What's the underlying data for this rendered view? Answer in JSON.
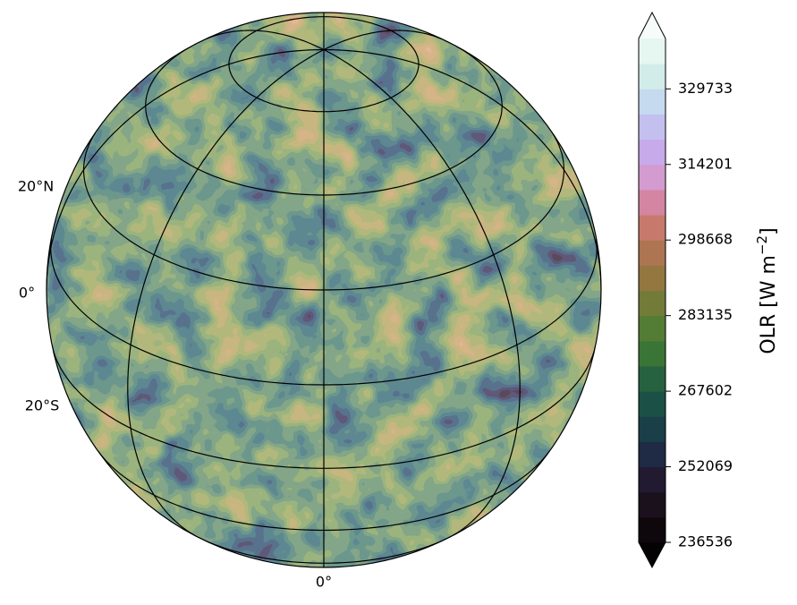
{
  "chart_data": {
    "type": "orthographic-map",
    "projection_center_lat": 30,
    "graticule_lat_step": 20,
    "graticule_lon_step": 45,
    "lat_labels": [
      "20°N",
      "0°",
      "20°S"
    ],
    "lon_labels": [
      "0°"
    ],
    "colorbar": {
      "label": "OLR [W m",
      "label_superscript": "−2",
      "label_end": "]",
      "clim": [
        236536,
        340090
      ],
      "ticks": [
        236536,
        252069,
        267602,
        283135,
        298668,
        314201,
        329733
      ],
      "extend_low_color": "#050204",
      "extend_high_color": "#f6fcfa",
      "colors": [
        "#0e070c",
        "#1b111c",
        "#221a31",
        "#1f2a45",
        "#1a3f49",
        "#1b5046",
        "#276240",
        "#3b7536",
        "#537c34",
        "#737b39",
        "#93773f",
        "#ad7552",
        "#c77a6c",
        "#d385a2",
        "#d39bd0",
        "#c7aaea",
        "#c3c0f0",
        "#c5d9ef",
        "#d2ecea",
        "#e6f6f1"
      ]
    }
  }
}
